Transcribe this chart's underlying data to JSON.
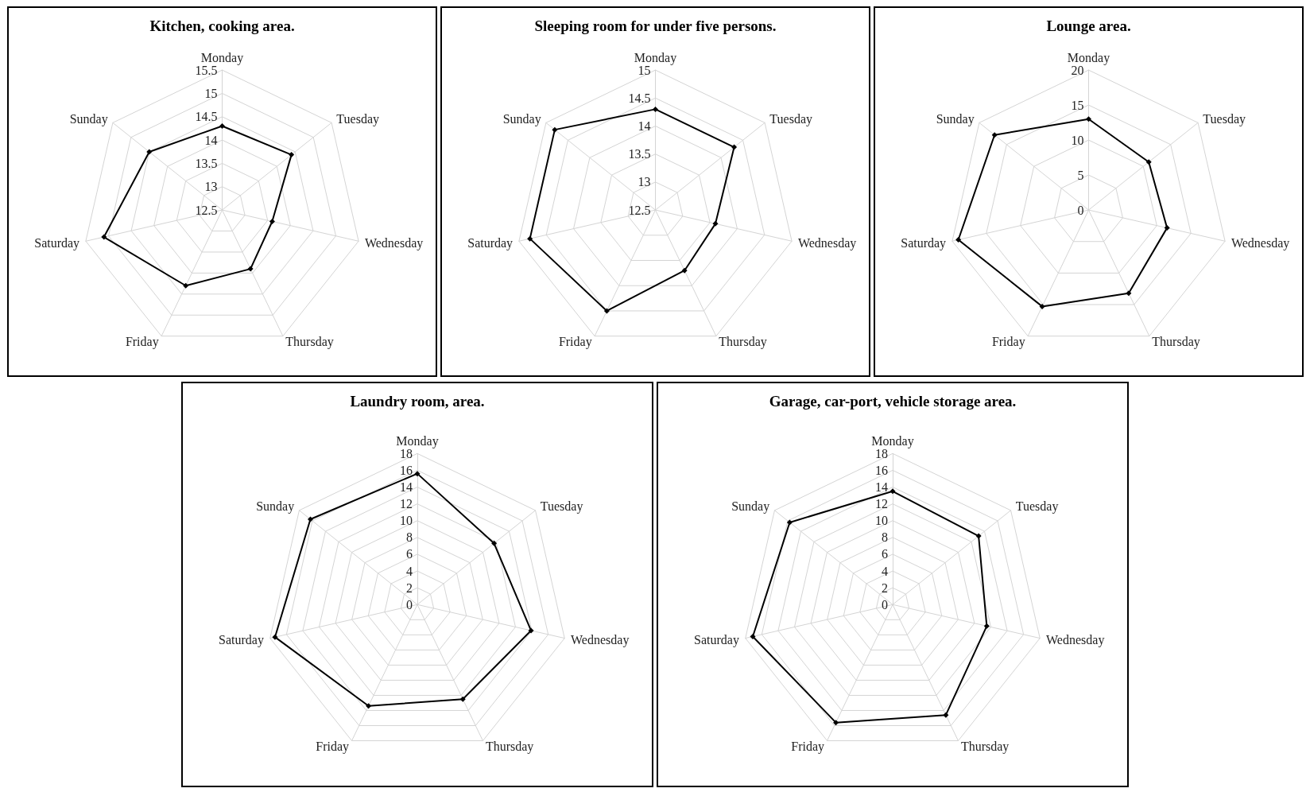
{
  "chart_data": [
    {
      "type": "radar",
      "title": "Kitchen, cooking area.",
      "categories": [
        "Monday",
        "Tuesday",
        "Wednesday",
        "Thursday",
        "Friday",
        "Saturday",
        "Sunday"
      ],
      "series": [
        {
          "color": "#000000",
          "values": [
            14.3,
            14.4,
            13.6,
            13.9,
            14.3,
            15.1,
            14.5
          ]
        }
      ],
      "ylim": [
        12.5,
        15.5
      ],
      "yticks": [
        12.5,
        13,
        13.5,
        14,
        14.5,
        15,
        15.5
      ],
      "marker": "diamond",
      "grid": true
    },
    {
      "type": "radar",
      "title": "Sleeping room for under five persons.",
      "categories": [
        "Monday",
        "Tuesday",
        "Wednesday",
        "Thursday",
        "Friday",
        "Saturday",
        "Sunday"
      ],
      "series": [
        {
          "color": "#000000",
          "values": [
            14.3,
            14.3,
            13.6,
            13.7,
            14.5,
            14.8,
            14.8
          ]
        }
      ],
      "ylim": [
        12.5,
        15
      ],
      "yticks": [
        12.5,
        13,
        13.5,
        14,
        14.5,
        15
      ],
      "marker": "diamond",
      "grid": true
    },
    {
      "type": "radar",
      "title": "Lounge area.",
      "categories": [
        "Monday",
        "Tuesday",
        "Wednesday",
        "Thursday",
        "Friday",
        "Saturday",
        "Sunday"
      ],
      "series": [
        {
          "color": "#000000",
          "values": [
            13,
            11,
            11.5,
            13.2,
            15.3,
            19.1,
            17.2
          ]
        }
      ],
      "ylim": [
        0,
        20
      ],
      "yticks": [
        0,
        5,
        10,
        15,
        20
      ],
      "marker": "diamond",
      "grid": true
    },
    {
      "type": "radar",
      "title": "Laundry room, area.",
      "categories": [
        "Monday",
        "Tuesday",
        "Wednesday",
        "Thursday",
        "Friday",
        "Saturday",
        "Sunday"
      ],
      "series": [
        {
          "color": "#000000",
          "values": [
            15.6,
            11.7,
            13.9,
            12.5,
            13.4,
            17.4,
            16.3
          ]
        }
      ],
      "ylim": [
        0,
        18
      ],
      "yticks": [
        0,
        2,
        4,
        6,
        8,
        10,
        12,
        14,
        16,
        18
      ],
      "marker": "diamond",
      "grid": true
    },
    {
      "type": "radar",
      "title": "Garage, car-port, vehicle storage area.",
      "categories": [
        "Monday",
        "Tuesday",
        "Wednesday",
        "Thursday",
        "Friday",
        "Saturday",
        "Sunday"
      ],
      "series": [
        {
          "color": "#000000",
          "values": [
            13.5,
            13.1,
            11.5,
            14.6,
            15.6,
            17.1,
            15.7
          ]
        }
      ],
      "ylim": [
        0,
        18
      ],
      "yticks": [
        0,
        2,
        4,
        6,
        8,
        10,
        12,
        14,
        16,
        18
      ],
      "marker": "diamond",
      "grid": true
    }
  ]
}
